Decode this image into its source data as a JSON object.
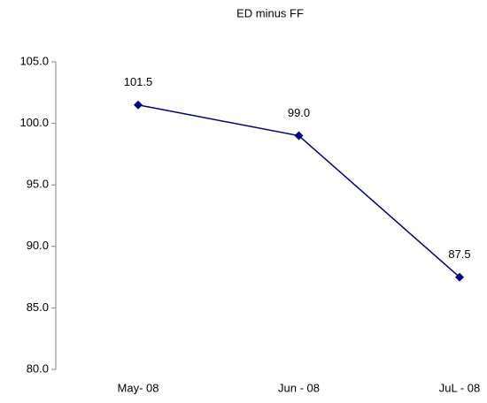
{
  "chart_data": {
    "type": "line",
    "title": "ED minus FF",
    "categories": [
      "May- 08",
      "Jun - 08",
      "JuL - 08"
    ],
    "values": [
      101.5,
      99.0,
      87.5
    ],
    "value_labels": [
      "101.5",
      "99.0",
      "87.5"
    ],
    "color": "#000080",
    "ylim": [
      80,
      105
    ],
    "yticks": [
      {
        "value": 80,
        "label": "80.0"
      },
      {
        "value": 85,
        "label": "85.0"
      },
      {
        "value": 90,
        "label": "90.0"
      },
      {
        "value": 95,
        "label": "95.0"
      },
      {
        "value": 100,
        "label": "100.0"
      },
      {
        "value": 105,
        "label": "105.0"
      }
    ],
    "grid": false
  }
}
